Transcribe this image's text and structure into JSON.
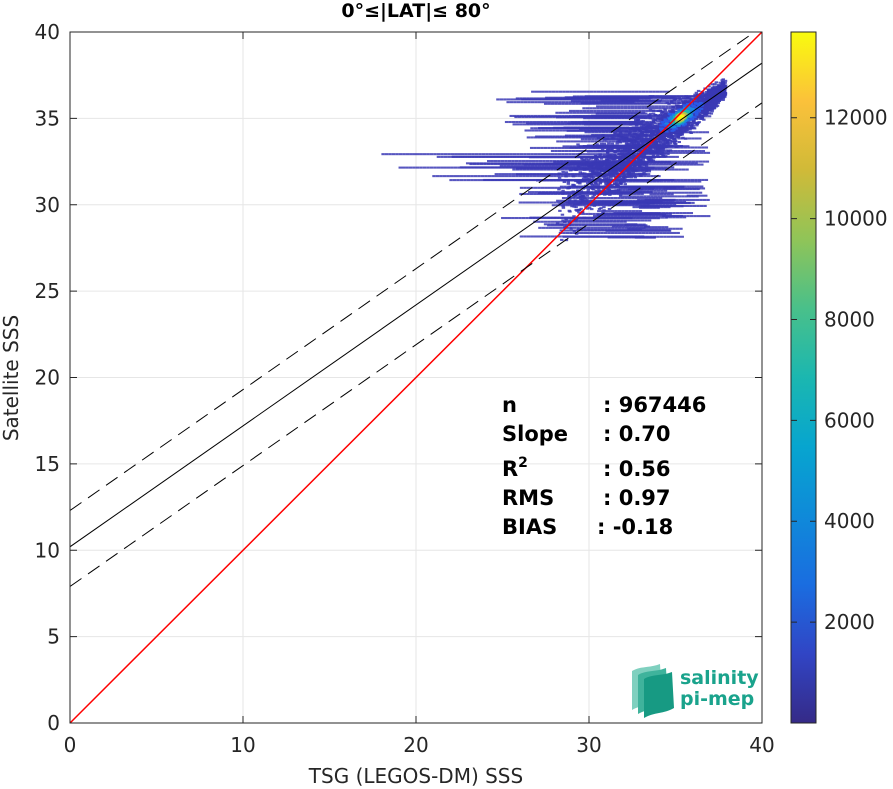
{
  "chart_data": {
    "type": "heatmap",
    "title": "0°≤|LAT|≤ 80°",
    "xlabel": "TSG (LEGOS-DM) SSS",
    "ylabel": "Satellite SSS",
    "xlim": [
      0,
      40
    ],
    "ylim": [
      0,
      40
    ],
    "x_ticks": [
      "0",
      "10",
      "20",
      "30",
      "40"
    ],
    "y_ticks": [
      "0",
      "5",
      "10",
      "15",
      "20",
      "25",
      "30",
      "35",
      "40"
    ],
    "grid": true,
    "colorbar": {
      "colormap": "parula",
      "min": 0,
      "max": 13700,
      "ticks": [
        "2000",
        "4000",
        "6000",
        "8000",
        "10000",
        "12000"
      ]
    },
    "lines": [
      {
        "name": "1:1",
        "slope": 1.0,
        "intercept": 0.0,
        "color": "#ff0000",
        "style": "solid"
      },
      {
        "name": "fit",
        "slope": 0.7,
        "intercept": 10.2,
        "color": "#000000",
        "style": "solid"
      },
      {
        "name": "fit-upper",
        "slope": 0.7,
        "intercept": 12.3,
        "color": "#000000",
        "style": "dashed"
      },
      {
        "name": "fit-lower",
        "slope": 0.7,
        "intercept": 7.9,
        "color": "#000000",
        "style": "dashed"
      }
    ],
    "density_peak": {
      "x": 35.2,
      "y": 35.0,
      "count": 13500
    },
    "stats": [
      {
        "label": "n",
        "value": ": 967446"
      },
      {
        "label": "Slope",
        "value": ": 0.70"
      },
      {
        "label": "R",
        "sup": "2",
        "value": ": 0.56"
      },
      {
        "label": "RMS",
        "value": ": 0.97"
      },
      {
        "label": "BIAS",
        "value": ": -0.18"
      }
    ]
  },
  "logo": {
    "line1": "salinity",
    "line2": "pi-mep"
  }
}
